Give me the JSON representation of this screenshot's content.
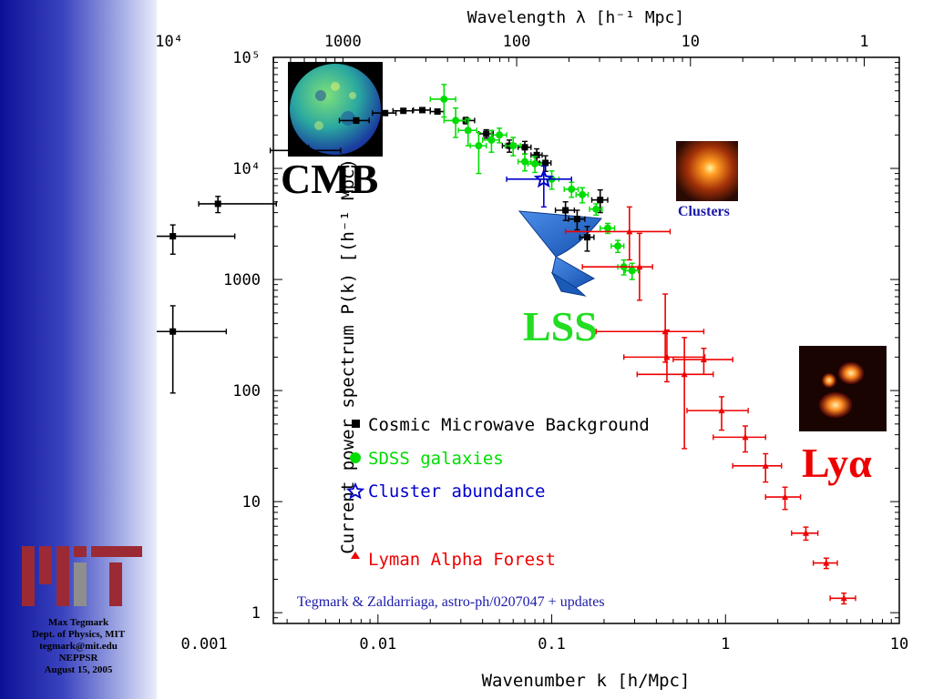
{
  "sidebar": {
    "credits": [
      "Max Tegmark",
      "Dept. of Physics, MIT",
      "tegmark@mit.edu",
      "NEPPSR",
      "August 15, 2005"
    ],
    "logo_colors": {
      "dark_red": "#9b2a35",
      "gray": "#8e8e8e"
    }
  },
  "chart_data": {
    "type": "scatter",
    "xscale": "log",
    "yscale": "log",
    "xlim": [
      0.0025,
      10
    ],
    "ylim": [
      0.8,
      100000
    ],
    "xlabel": "Wavenumber k [h/Mpc]",
    "ylabel": "Current power spectrum P(k) [(h⁻¹ Mpc)³]",
    "top_axis_label": "Wavelength λ [h⁻¹ Mpc]",
    "x_ticks": [
      {
        "value": 0.001,
        "label": "0.001"
      },
      {
        "value": 0.01,
        "label": "0.01"
      },
      {
        "value": 0.1,
        "label": "0.1"
      },
      {
        "value": 1,
        "label": "1"
      },
      {
        "value": 10,
        "label": "10"
      }
    ],
    "top_ticks": [
      {
        "value": 0.000628,
        "label": "10⁴"
      },
      {
        "value": 0.00628,
        "label": "1000"
      },
      {
        "value": 0.0628,
        "label": "100"
      },
      {
        "value": 0.628,
        "label": "10"
      },
      {
        "value": 6.28,
        "label": "1"
      }
    ],
    "y_ticks": [
      {
        "value": 1,
        "label": "1"
      },
      {
        "value": 10,
        "label": "10"
      },
      {
        "value": 100,
        "label": "100"
      },
      {
        "value": 1000,
        "label": "1000"
      },
      {
        "value": 10000,
        "label": "10⁴"
      },
      {
        "value": 100000,
        "label": "10⁵"
      }
    ],
    "series": [
      {
        "name": "Cosmic Microwave Background",
        "color": "#000000",
        "marker": "square",
        "points": [
          {
            "x": 0.00066,
            "y": 340,
            "xerr": [
              0.00034,
              0.00068
            ],
            "yerr": [
              245,
              240
            ]
          },
          {
            "x": 0.00066,
            "y": 2450,
            "xerr": [
              0.00023,
              0.00084
            ],
            "yerr": [
              760,
              650
            ]
          },
          {
            "x": 0.0012,
            "y": 4800,
            "xerr": [
              0.00027,
              0.0014
            ],
            "yerr": [
              800,
              800
            ]
          },
          {
            "x": 0.0039,
            "y": 14500,
            "xerr": [
              0.0015,
              0.0022
            ],
            "yerr": [
              1500,
              1500
            ]
          },
          {
            "x": 0.0075,
            "y": 27000,
            "xerr": [
              0.0015,
              0.0014
            ],
            "yerr": [
              1500,
              1500
            ]
          },
          {
            "x": 0.011,
            "y": 31500,
            "xerr": [
              0.0017,
              0.0017
            ],
            "yerr": [
              1500,
              1500
            ]
          },
          {
            "x": 0.014,
            "y": 33000,
            "xerr": [
              0.0018,
              0.0018
            ],
            "yerr": [
              1500,
              1500
            ]
          },
          {
            "x": 0.018,
            "y": 33500,
            "xerr": [
              0.002,
              0.002
            ],
            "yerr": [
              1500,
              1500
            ]
          },
          {
            "x": 0.022,
            "y": 32500,
            "xerr": [
              0.002,
              0.002
            ],
            "yerr": [
              1500,
              1500
            ]
          },
          {
            "x": 0.032,
            "y": 27000,
            "xerr": [
              0.004,
              0.004
            ],
            "yerr": [
              1800,
              1800
            ]
          },
          {
            "x": 0.042,
            "y": 20500,
            "xerr": [
              0.004,
              0.004
            ],
            "yerr": [
              1800,
              1800
            ]
          },
          {
            "x": 0.057,
            "y": 16000,
            "xerr": [
              0.005,
              0.005
            ],
            "yerr": [
              2000,
              2000
            ]
          },
          {
            "x": 0.07,
            "y": 15500,
            "xerr": [
              0.006,
              0.006
            ],
            "yerr": [
              2000,
              2000
            ]
          },
          {
            "x": 0.082,
            "y": 13200,
            "xerr": [
              0.006,
              0.006
            ],
            "yerr": [
              1800,
              1800
            ]
          },
          {
            "x": 0.092,
            "y": 11200,
            "xerr": [
              0.007,
              0.007
            ],
            "yerr": [
              1800,
              1800
            ]
          },
          {
            "x": 0.12,
            "y": 4200,
            "xerr": [
              0.015,
              0.015
            ],
            "yerr": [
              800,
              800
            ]
          },
          {
            "x": 0.14,
            "y": 3500,
            "xerr": [
              0.015,
              0.015
            ],
            "yerr": [
              700,
              700
            ]
          },
          {
            "x": 0.16,
            "y": 2400,
            "xerr": [
              0.015,
              0.015
            ],
            "yerr": [
              600,
              600
            ]
          },
          {
            "x": 0.19,
            "y": 5200,
            "xerr": [
              0.02,
              0.02
            ],
            "yerr": [
              1200,
              1200
            ]
          }
        ]
      },
      {
        "name": "SDSS galaxies",
        "color": "#00dd00",
        "marker": "circle",
        "points": [
          {
            "x": 0.024,
            "y": 42000,
            "xerr": [
              0.004,
              0.004
            ],
            "yerr": [
              13000,
              15000
            ]
          },
          {
            "x": 0.028,
            "y": 27000,
            "xerr": [
              0.004,
              0.004
            ],
            "yerr": [
              8000,
              8000
            ]
          },
          {
            "x": 0.033,
            "y": 22000,
            "xerr": [
              0.004,
              0.004
            ],
            "yerr": [
              6000,
              6000
            ]
          },
          {
            "x": 0.038,
            "y": 16000,
            "xerr": [
              0.004,
              0.004
            ],
            "yerr": [
              7000,
              5000
            ]
          },
          {
            "x": 0.045,
            "y": 18000,
            "xerr": [
              0.005,
              0.005
            ],
            "yerr": [
              4000,
              4000
            ]
          },
          {
            "x": 0.05,
            "y": 20000,
            "xerr": [
              0.005,
              0.005
            ],
            "yerr": [
              3000,
              3000
            ]
          },
          {
            "x": 0.06,
            "y": 16000,
            "xerr": [
              0.006,
              0.006
            ],
            "yerr": [
              3000,
              3000
            ]
          },
          {
            "x": 0.07,
            "y": 11500,
            "xerr": [
              0.006,
              0.006
            ],
            "yerr": [
              2000,
              2000
            ]
          },
          {
            "x": 0.08,
            "y": 11000,
            "xerr": [
              0.007,
              0.007
            ],
            "yerr": [
              1800,
              1800
            ]
          },
          {
            "x": 0.1,
            "y": 8000,
            "xerr": [
              0.01,
              0.01
            ],
            "yerr": [
              1500,
              1500
            ]
          },
          {
            "x": 0.13,
            "y": 6500,
            "xerr": [
              0.012,
              0.012
            ],
            "yerr": [
              1000,
              1000
            ]
          },
          {
            "x": 0.15,
            "y": 5800,
            "xerr": [
              0.012,
              0.012
            ],
            "yerr": [
              900,
              900
            ]
          },
          {
            "x": 0.18,
            "y": 4300,
            "xerr": [
              0.015,
              0.015
            ],
            "yerr": [
              500,
              500
            ]
          },
          {
            "x": 0.21,
            "y": 2900,
            "xerr": [
              0.02,
              0.02
            ],
            "yerr": [
              300,
              300
            ]
          },
          {
            "x": 0.24,
            "y": 2000,
            "xerr": [
              0.02,
              0.02
            ],
            "yerr": [
              250,
              250
            ]
          },
          {
            "x": 0.26,
            "y": 1300,
            "xerr": [
              0.02,
              0.02
            ],
            "yerr": [
              200,
              200
            ]
          },
          {
            "x": 0.29,
            "y": 1200,
            "xerr": [
              0.025,
              0.025
            ],
            "yerr": [
              200,
              200
            ]
          }
        ]
      },
      {
        "name": "Cluster abundance",
        "color": "#0000cc",
        "marker": "star",
        "points": [
          {
            "x": 0.09,
            "y": 8000,
            "xerr": [
              0.035,
              0.04
            ],
            "yerr": [
              3500,
              2500
            ]
          }
        ]
      },
      {
        "name": "Lyman Alpha Forest",
        "color": "#ee0000",
        "marker": "triangle",
        "points": [
          {
            "x": 0.28,
            "y": 2700,
            "xerr": [
              0.16,
              0.2
            ],
            "yerr": [
              1200,
              1800
            ]
          },
          {
            "x": 0.32,
            "y": 1300,
            "xerr": [
              0.17,
              0.06
            ],
            "yerr": [
              650,
              1300
            ]
          },
          {
            "x": 0.45,
            "y": 340,
            "xerr": [
              0.27,
              0.3
            ],
            "yerr": [
              160,
              400
            ]
          },
          {
            "x": 0.46,
            "y": 200,
            "xerr": [
              0.2,
              0.3
            ],
            "yerr": [
              80,
              150
            ]
          },
          {
            "x": 0.58,
            "y": 140,
            "xerr": [
              0.27,
              0.27
            ],
            "yerr": [
              110,
              160
            ]
          },
          {
            "x": 0.75,
            "y": 190,
            "xerr": [
              0.25,
              0.35
            ],
            "yerr": [
              50,
              50
            ]
          },
          {
            "x": 0.95,
            "y": 66,
            "xerr": [
              0.35,
              0.4
            ],
            "yerr": [
              22,
              22
            ]
          },
          {
            "x": 1.3,
            "y": 38,
            "xerr": [
              0.45,
              0.4
            ],
            "yerr": [
              10,
              10
            ]
          },
          {
            "x": 1.7,
            "y": 21,
            "xerr": [
              0.6,
              0.4
            ],
            "yerr": [
              6,
              6
            ]
          },
          {
            "x": 2.2,
            "y": 11,
            "xerr": [
              0.5,
              0.5
            ],
            "yerr": [
              2.5,
              2.5
            ]
          },
          {
            "x": 2.9,
            "y": 5.2,
            "xerr": [
              0.5,
              0.5
            ],
            "yerr": [
              0.7,
              0.7
            ]
          },
          {
            "x": 3.8,
            "y": 2.8,
            "xerr": [
              0.6,
              0.6
            ],
            "yerr": [
              0.3,
              0.3
            ]
          },
          {
            "x": 4.8,
            "y": 1.35,
            "xerr": [
              0.8,
              0.8
            ],
            "yerr": [
              0.15,
              0.15
            ]
          }
        ]
      }
    ],
    "legend": {
      "placement": "center-left",
      "items": [
        {
          "label": "Cosmic Microwave Background",
          "color": "#000000",
          "marker": "square"
        },
        {
          "label": "SDSS galaxies",
          "color": "#00dd00",
          "marker": "circle"
        },
        {
          "label": "Cluster abundance",
          "color": "#0000cc",
          "marker": "star"
        },
        {
          "label": "Lyman Alpha Forest",
          "color": "#ee0000",
          "marker": "triangle"
        }
      ]
    },
    "annotations": {
      "cmb": {
        "text": "CMB",
        "color": "#000000"
      },
      "lss": {
        "text": "LSS",
        "color": "#22dd22"
      },
      "clusters": {
        "text": "Clusters",
        "color": "#1a1aaa"
      },
      "lya": {
        "text": "Lyα",
        "color": "#ee0000"
      },
      "citation": {
        "text": "Tegmark & Zaldarriaga, astro-ph/0207047 + updates",
        "color": "#1a1aaa"
      }
    }
  }
}
